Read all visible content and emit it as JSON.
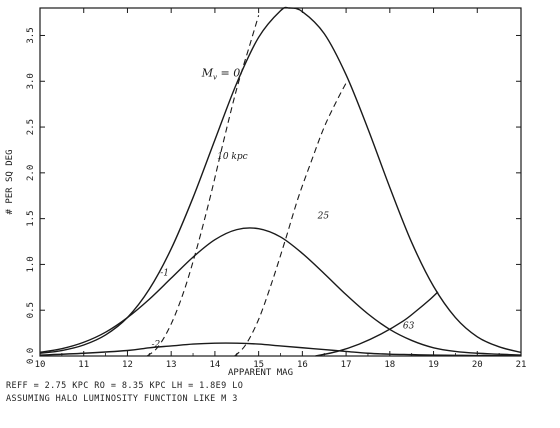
{
  "chart_data": {
    "type": "line",
    "xlabel": "APPARENT MAG",
    "ylabel": "# PER SQ DEG",
    "xlim": [
      10,
      21
    ],
    "ylim": [
      0,
      3.8
    ],
    "x_ticks": [
      10,
      11,
      12,
      13,
      14,
      15,
      16,
      17,
      18,
      19,
      20,
      21
    ],
    "y_ticks": [
      0.0,
      0.5,
      1.0,
      1.5,
      2.0,
      2.5,
      3.0,
      3.5
    ],
    "grid": false,
    "series": [
      {
        "name": "M_v = 0",
        "style": "solid",
        "x": [
          10,
          10.5,
          11,
          11.5,
          12,
          12.5,
          13,
          13.5,
          14,
          14.5,
          15,
          15.5,
          15.7,
          16,
          16.5,
          17,
          17.5,
          18,
          18.5,
          19,
          19.5,
          20,
          20.5,
          21
        ],
        "y": [
          0.03,
          0.06,
          0.12,
          0.23,
          0.42,
          0.73,
          1.17,
          1.73,
          2.36,
          2.98,
          3.48,
          3.77,
          3.8,
          3.76,
          3.52,
          3.07,
          2.48,
          1.84,
          1.24,
          0.76,
          0.42,
          0.21,
          0.1,
          0.04
        ]
      },
      {
        "name": "-1",
        "style": "solid",
        "x": [
          10,
          10.5,
          11,
          11.5,
          12,
          12.5,
          13,
          13.5,
          14,
          14.5,
          15,
          15.5,
          16,
          16.5,
          17,
          17.5,
          18,
          18.5,
          19,
          19.5,
          20,
          20.5,
          21
        ],
        "y": [
          0.04,
          0.08,
          0.15,
          0.26,
          0.42,
          0.62,
          0.85,
          1.08,
          1.27,
          1.38,
          1.39,
          1.3,
          1.12,
          0.9,
          0.67,
          0.46,
          0.29,
          0.17,
          0.09,
          0.05,
          0.03,
          0.02,
          0.01
        ]
      },
      {
        "name": "-2",
        "style": "solid",
        "x": [
          10,
          11,
          12,
          12.5,
          13,
          13.5,
          14,
          14.5,
          15,
          15.5,
          16,
          16.5,
          17,
          17.5,
          18,
          18.5,
          19,
          19.5,
          20,
          21
        ],
        "y": [
          0.01,
          0.03,
          0.06,
          0.09,
          0.11,
          0.13,
          0.14,
          0.14,
          0.13,
          0.11,
          0.09,
          0.07,
          0.05,
          0.03,
          0.02,
          0.015,
          0.01,
          0.008,
          0.005,
          0.002
        ]
      },
      {
        "name": "10 kpc",
        "style": "dashed",
        "x": [
          12.45,
          12.7,
          13.0,
          13.3,
          13.6,
          13.9,
          14.2,
          14.5,
          14.8,
          15.0
        ],
        "y": [
          0.0,
          0.1,
          0.35,
          0.72,
          1.2,
          1.75,
          2.35,
          2.92,
          3.4,
          3.72
        ]
      },
      {
        "name": "25",
        "style": "dashed",
        "x": [
          14.45,
          14.7,
          15.0,
          15.3,
          15.6,
          15.9,
          16.2,
          16.5,
          16.8,
          17.0
        ],
        "y": [
          0.0,
          0.12,
          0.4,
          0.8,
          1.25,
          1.72,
          2.12,
          2.5,
          2.8,
          2.98
        ]
      },
      {
        "name": "63",
        "style": "solid",
        "x": [
          16.3,
          16.8,
          17.3,
          17.8,
          18.3,
          18.6,
          18.9,
          19.1
        ],
        "y": [
          0.0,
          0.05,
          0.13,
          0.24,
          0.38,
          0.49,
          0.61,
          0.7
        ]
      }
    ],
    "annotations": [
      {
        "text": "M",
        "sub": "v",
        "after": " = 0",
        "x": 13.7,
        "y": 3.05
      },
      {
        "text": "10 kpc",
        "x": 14.05,
        "y": 2.15
      },
      {
        "text": "25",
        "x": 16.35,
        "y": 1.5
      },
      {
        "text": "-1",
        "x": 12.75,
        "y": 0.88
      },
      {
        "text": "-2",
        "x": 12.55,
        "y": 0.1
      },
      {
        "text": "63",
        "x": 18.3,
        "y": 0.3
      }
    ]
  },
  "caption": {
    "line1": "REFF = 2.75 KPC  RO = 8.35 KPC  LH = 1.8E9 LO",
    "line2": "ASSUMING HALO LUMINOSITY FUNCTION LIKE M 3"
  }
}
